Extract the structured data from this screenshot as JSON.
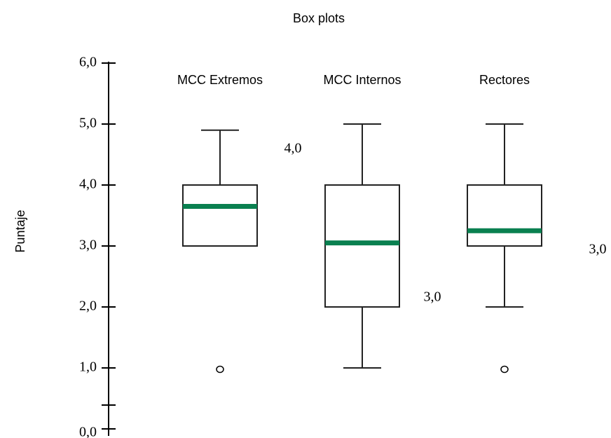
{
  "chart_data": {
    "type": "box",
    "title": "Box plots",
    "y_label": "Puntaje",
    "categories": [
      "MCC Extremos",
      "MCC Internos",
      "Rectores"
    ],
    "min": [
      3.0,
      1.0,
      2.0
    ],
    "q1": [
      3.0,
      2.0,
      3.0
    ],
    "median": [
      3.65,
      3.05,
      3.25
    ],
    "q3": [
      4.0,
      4.0,
      4.0
    ],
    "max": [
      4.9,
      5.0,
      5.0
    ],
    "outliers": [
      [
        1.0
      ],
      [],
      [
        1.0
      ]
    ],
    "box_color": "#222222",
    "median_color": "#0a8050",
    "ylim": [
      0,
      6
    ],
    "yticks": [
      {
        "value": 0,
        "label": "0,0"
      },
      {
        "value": 1,
        "label": "1,0"
      },
      {
        "value": 2,
        "label": "2,0"
      },
      {
        "value": 3,
        "label": "3,0"
      },
      {
        "value": 4,
        "label": "4,0"
      },
      {
        "value": 5,
        "label": "5,0"
      },
      {
        "value": 6,
        "label": "6,0"
      }
    ],
    "annotations": [
      "4,0",
      "3,0",
      "3,0"
    ]
  }
}
